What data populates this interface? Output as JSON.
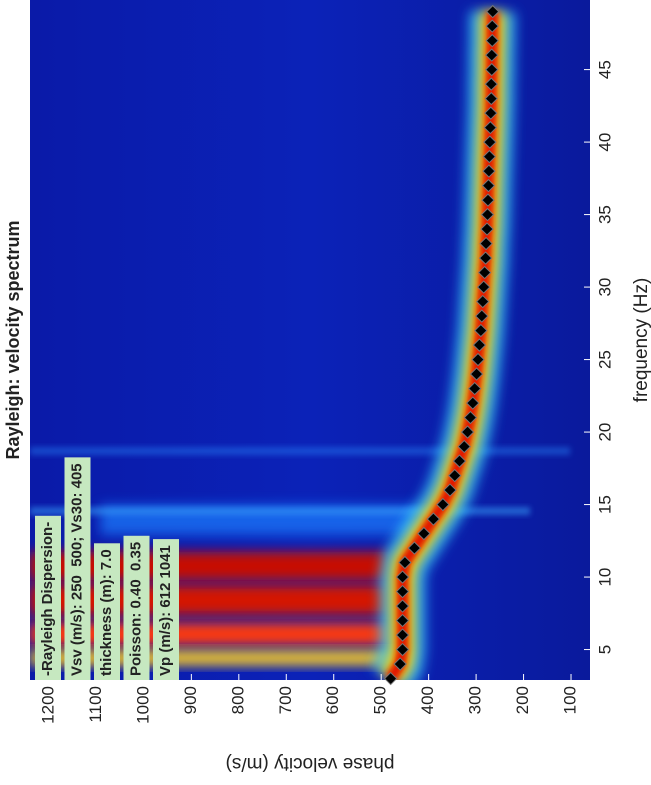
{
  "chart_data": {
    "type": "scatter",
    "title": "Rayleigh: velocity spectrum",
    "xlabel": "frequency (Hz)",
    "ylabel": "phase velocity (m/s)",
    "annotations": [
      "-Rayleigh Dispersion-",
      "Vsv (m/s): 250  500; Vs30: 405",
      "thickness (m): 7.0",
      "Poisson: 0.40  0.35",
      "Vp (m/s): 612 1041"
    ],
    "x": [
      3,
      4,
      5,
      6,
      7,
      8,
      9,
      10,
      11,
      12,
      13,
      14,
      15,
      16,
      17,
      18,
      19,
      20,
      21,
      22,
      23,
      24,
      25,
      26,
      27,
      28,
      29,
      30,
      31,
      32,
      33,
      34,
      35,
      36,
      37,
      38,
      39,
      40,
      41,
      42,
      43,
      44,
      45,
      46,
      47,
      48,
      49
    ],
    "values": [
      480,
      460,
      455,
      455,
      455,
      455,
      455,
      455,
      450,
      430,
      410,
      390,
      370,
      355,
      345,
      335,
      325,
      318,
      312,
      307,
      303,
      299,
      296,
      293,
      290,
      288,
      286,
      284,
      282,
      280,
      279,
      277,
      276,
      275,
      274,
      273,
      272,
      271,
      270,
      269,
      268,
      268,
      267,
      267,
      266,
      266,
      265
    ],
    "color": "#000000",
    "xlim": [
      2.9,
      49.8
    ],
    "ylim": [
      60,
      1240
    ],
    "xticks": [
      5,
      10,
      15,
      20,
      25,
      30,
      35,
      40,
      45
    ],
    "yticks": [
      100,
      200,
      300,
      400,
      500,
      600,
      700,
      800,
      900,
      1000,
      1100,
      1200
    ]
  }
}
